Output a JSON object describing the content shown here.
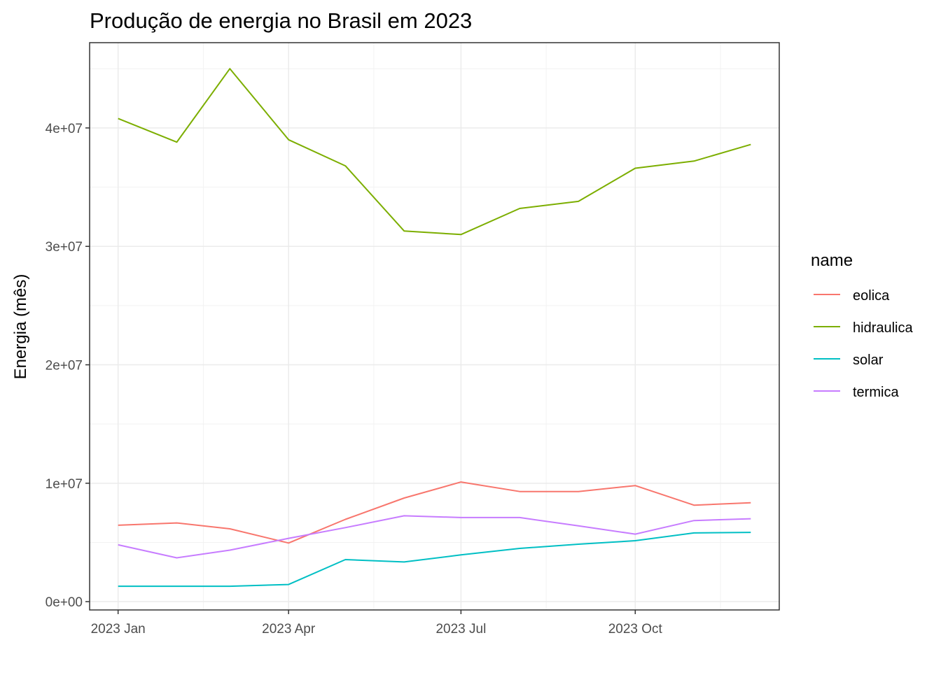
{
  "chart_data": {
    "type": "line",
    "title": "Produção de energia no Brasil em 2023",
    "ylabel": "Energia (mês)",
    "xlabel": "",
    "x": [
      "2023-01",
      "2023-02",
      "2023-03",
      "2023-04",
      "2023-05",
      "2023-06",
      "2023-07",
      "2023-08",
      "2023-09",
      "2023-10",
      "2023-11",
      "2023-12"
    ],
    "x_ticks": [
      {
        "value": "2023-01",
        "label": "2023 Jan"
      },
      {
        "value": "2023-04",
        "label": "2023 Apr"
      },
      {
        "value": "2023-07",
        "label": "2023 Jul"
      },
      {
        "value": "2023-10",
        "label": "2023 Oct"
      }
    ],
    "y_ticks": [
      {
        "value": 0,
        "label": "0e+00"
      },
      {
        "value": 10000000,
        "label": "1e+07"
      },
      {
        "value": 20000000,
        "label": "2e+07"
      },
      {
        "value": 30000000,
        "label": "3e+07"
      },
      {
        "value": 40000000,
        "label": "4e+07"
      }
    ],
    "ylim": [
      -700000,
      47200000
    ],
    "grid": true,
    "legend": {
      "title": "name",
      "position": "right"
    },
    "series": [
      {
        "name": "eolica",
        "color": "#F8766D",
        "values": [
          6450000,
          6650000,
          6150000,
          4950000,
          6950000,
          8750000,
          10100000,
          9300000,
          9300000,
          9800000,
          8150000,
          8350000
        ]
      },
      {
        "name": "hidraulica",
        "color": "#7CAE00",
        "values": [
          40800000,
          38800000,
          45000000,
          39000000,
          36800000,
          31300000,
          31000000,
          33200000,
          33800000,
          36600000,
          37200000,
          38600000
        ]
      },
      {
        "name": "solar",
        "color": "#00BFC4",
        "values": [
          1300000,
          1300000,
          1300000,
          1450000,
          3550000,
          3350000,
          3950000,
          4500000,
          4850000,
          5150000,
          5800000,
          5850000
        ]
      },
      {
        "name": "termica",
        "color": "#C77CFF",
        "values": [
          4800000,
          3700000,
          4350000,
          5350000,
          6250000,
          7250000,
          7100000,
          7100000,
          6400000,
          5700000,
          6850000,
          7000000
        ]
      }
    ]
  }
}
